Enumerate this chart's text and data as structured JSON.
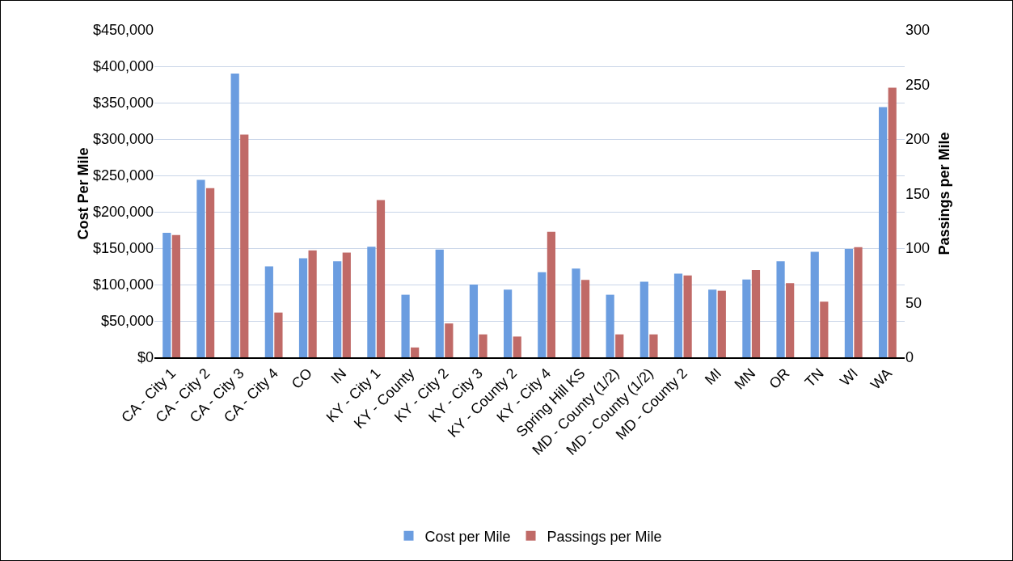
{
  "chart_data": {
    "type": "bar",
    "ylabel": "Cost Per Mile",
    "y2label": "Passings per Mile",
    "categories": [
      "CA - City 1",
      "CA - City 2",
      "CA - City 3",
      "CA - City 4",
      "CO",
      "IN",
      "KY - City 1",
      "KY - County",
      "KY - City 2",
      "KY - City 3",
      "KY - County 2",
      "KY - City 4",
      "Spring Hill KS",
      "MD - County (1/2)",
      "MD - County (1/2)",
      "MD - County 2",
      "MI",
      "MN",
      "OR",
      "TN",
      "WI",
      "WA"
    ],
    "series": [
      {
        "name": "Cost per Mile",
        "color": "#6b9de0",
        "values": [
          171000,
          244000,
          390000,
          125000,
          136000,
          132000,
          152000,
          86000,
          148000,
          100000,
          93000,
          117000,
          122000,
          86000,
          104000,
          115000,
          93000,
          107000,
          132000,
          145000,
          149000,
          344000
        ]
      },
      {
        "name": "Passings per Mile",
        "color": "#c06a67",
        "axis": "y2",
        "values": [
          112,
          155,
          204,
          41,
          98,
          96,
          144,
          9,
          31,
          21,
          19,
          115,
          71,
          21,
          21,
          75,
          61,
          80,
          68,
          51,
          101,
          247
        ]
      }
    ],
    "ylim": [
      0,
      450000
    ],
    "yticks": [
      {
        "value": 0,
        "label": "$0"
      },
      {
        "value": 50000,
        "label": "$50,000"
      },
      {
        "value": 100000,
        "label": "$100,000"
      },
      {
        "value": 150000,
        "label": "$150,000"
      },
      {
        "value": 200000,
        "label": "$200,000"
      },
      {
        "value": 250000,
        "label": "$250,000"
      },
      {
        "value": 300000,
        "label": "$300,000"
      },
      {
        "value": 350000,
        "label": "$350,000"
      },
      {
        "value": 400000,
        "label": "$400,000"
      },
      {
        "value": 450000,
        "label": "$450,000"
      }
    ],
    "y2lim": [
      0,
      300
    ],
    "y2ticks": [
      0,
      50,
      100,
      150,
      200,
      250,
      300
    ],
    "grid": "y",
    "legend": "bottom"
  }
}
